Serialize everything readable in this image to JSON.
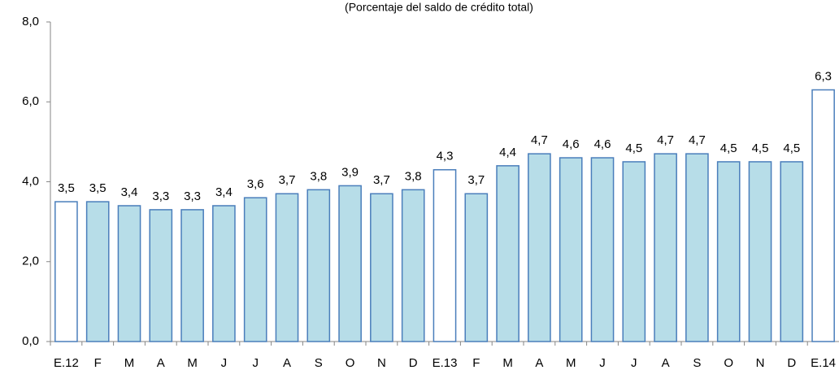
{
  "chart_data": {
    "type": "bar",
    "subtitle": "(Porcentaje del saldo de crédito total)",
    "categories": [
      "E.12",
      "F",
      "M",
      "A",
      "M",
      "J",
      "J",
      "A",
      "S",
      "O",
      "N",
      "D",
      "E.13",
      "F",
      "M",
      "A",
      "M",
      "J",
      "J",
      "A",
      "S",
      "O",
      "N",
      "D",
      "E.14"
    ],
    "values": [
      3.5,
      3.5,
      3.4,
      3.3,
      3.3,
      3.4,
      3.6,
      3.7,
      3.8,
      3.9,
      3.7,
      3.8,
      4.3,
      3.7,
      4.4,
      4.7,
      4.6,
      4.6,
      4.5,
      4.7,
      4.7,
      4.5,
      4.5,
      4.5,
      6.3
    ],
    "value_labels": [
      "3,5",
      "3,5",
      "3,4",
      "3,3",
      "3,3",
      "3,4",
      "3,6",
      "3,7",
      "3,8",
      "3,9",
      "3,7",
      "3,8",
      "4,3",
      "3,7",
      "4,4",
      "4,7",
      "4,6",
      "4,6",
      "4,5",
      "4,7",
      "4,7",
      "4,5",
      "4,5",
      "4,5",
      "6,3"
    ],
    "colors": [
      "#ffffff",
      "#b7dde8",
      "#b7dde8",
      "#b7dde8",
      "#b7dde8",
      "#b7dde8",
      "#b7dde8",
      "#b7dde8",
      "#b7dde8",
      "#b7dde8",
      "#b7dde8",
      "#b7dde8",
      "#ffffff",
      "#b7dde8",
      "#b7dde8",
      "#b7dde8",
      "#b7dde8",
      "#b7dde8",
      "#b7dde8",
      "#b7dde8",
      "#b7dde8",
      "#b7dde8",
      "#b7dde8",
      "#b7dde8",
      "#ffffff"
    ],
    "edge_color": "#4a7ebb",
    "ylim": [
      0,
      8
    ],
    "yticks": [
      {
        "value": 0,
        "label": "0,0"
      },
      {
        "value": 2,
        "label": "2,0"
      },
      {
        "value": 4,
        "label": "4,0"
      },
      {
        "value": 6,
        "label": "6,0"
      },
      {
        "value": 8,
        "label": "8,0"
      }
    ]
  }
}
